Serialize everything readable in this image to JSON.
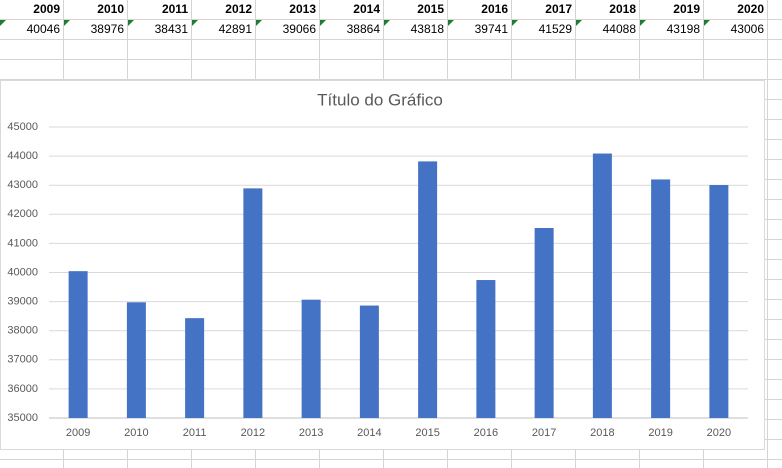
{
  "table": {
    "header": [
      2009,
      2010,
      2011,
      2012,
      2013,
      2014,
      2015,
      2016,
      2017,
      2018,
      2019,
      2020
    ],
    "rows": [
      [
        40046,
        38976,
        38431,
        42891,
        39066,
        38864,
        43818,
        39741,
        41529,
        44088,
        43198,
        43006
      ]
    ]
  },
  "chart_data": {
    "type": "bar",
    "title": "Título do Gráfico",
    "categories": [
      "2009",
      "2010",
      "2011",
      "2012",
      "2013",
      "2014",
      "2015",
      "2016",
      "2017",
      "2018",
      "2019",
      "2020"
    ],
    "values": [
      40046,
      38976,
      38431,
      42891,
      39066,
      38864,
      43818,
      39741,
      41529,
      44088,
      43198,
      43006
    ],
    "color": "#4472c4",
    "ylim": [
      35000,
      45000
    ],
    "yticks": [
      35000,
      36000,
      37000,
      38000,
      39000,
      40000,
      41000,
      42000,
      43000,
      44000,
      45000
    ],
    "grid": true
  }
}
